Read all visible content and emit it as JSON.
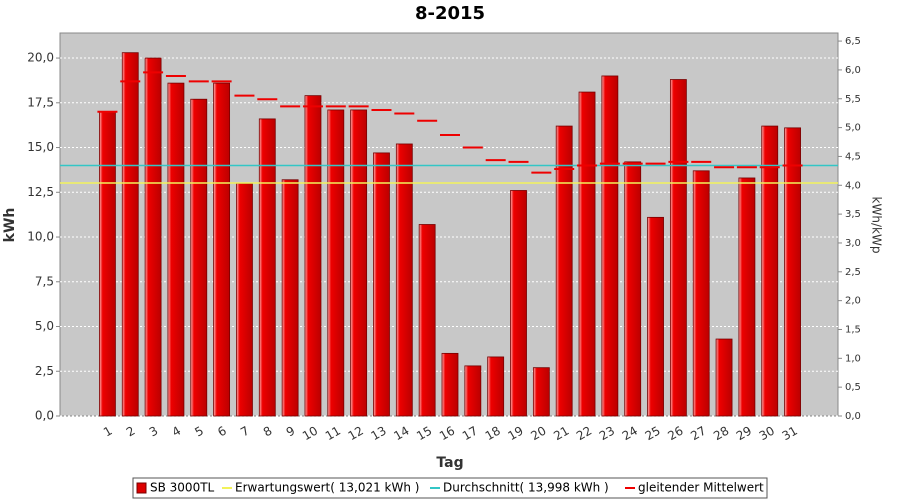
{
  "chart_data": {
    "type": "bar",
    "title": "8-2015",
    "x_label": "Tag",
    "y_label": "kWh",
    "y2_label": "kWh/kWp",
    "categories": [
      "1",
      "2",
      "3",
      "4",
      "5",
      "6",
      "7",
      "8",
      "9",
      "10",
      "11",
      "12",
      "13",
      "14",
      "15",
      "16",
      "17",
      "18",
      "19",
      "20",
      "21",
      "22",
      "23",
      "24",
      "25",
      "26",
      "27",
      "28",
      "29",
      "30",
      "31"
    ],
    "series": [
      {
        "name": "SB 3000TL",
        "kind": "bar",
        "color": "#dd0000",
        "values": [
          17.0,
          20.3,
          20.0,
          18.6,
          17.7,
          18.6,
          13.0,
          16.6,
          13.2,
          17.9,
          17.1,
          17.1,
          14.7,
          15.2,
          10.7,
          3.5,
          2.8,
          3.3,
          12.6,
          2.7,
          16.2,
          18.1,
          19.0,
          14.2,
          11.1,
          18.8,
          13.7,
          4.3,
          13.3,
          16.2,
          16.1
        ]
      },
      {
        "name": "Erwartungswert( 13,021 kWh )",
        "kind": "hline",
        "color": "#f2f25a",
        "value": 13.021
      },
      {
        "name": "Durchschnitt( 13,998 kWh )",
        "kind": "hline",
        "color": "#33c6c6",
        "value": 13.998
      },
      {
        "name": "gleitender Mittelwert",
        "kind": "dash",
        "color": "#ee0000",
        "values": [
          17.0,
          18.7,
          19.2,
          19.0,
          18.7,
          18.7,
          17.9,
          17.7,
          17.3,
          17.3,
          17.3,
          17.3,
          17.1,
          16.9,
          16.5,
          15.7,
          15.0,
          14.3,
          14.2,
          13.6,
          13.8,
          14.0,
          14.1,
          14.1,
          14.1,
          14.2,
          14.2,
          13.9,
          13.9,
          13.9,
          14.0
        ]
      }
    ],
    "ylim": [
      0,
      21.4
    ],
    "yticks": [
      {
        "value": 0,
        "label": "0,0"
      },
      {
        "value": 2.5,
        "label": "2,5"
      },
      {
        "value": 5,
        "label": "5,0"
      },
      {
        "value": 7.5,
        "label": "7,5"
      },
      {
        "value": 10,
        "label": "10,0"
      },
      {
        "value": 12.5,
        "label": "12,5"
      },
      {
        "value": 15,
        "label": "15,0"
      },
      {
        "value": 17.5,
        "label": "17,5"
      },
      {
        "value": 20,
        "label": "20,0"
      }
    ],
    "y2lim": [
      0,
      6.64
    ],
    "y2ticks": [
      {
        "value": 0,
        "label": "0,0"
      },
      {
        "value": 0.5,
        "label": "0,5"
      },
      {
        "value": 1,
        "label": "1,0"
      },
      {
        "value": 1.5,
        "label": "1,5"
      },
      {
        "value": 2,
        "label": "2,0"
      },
      {
        "value": 2.5,
        "label": "2,5"
      },
      {
        "value": 3,
        "label": "3,0"
      },
      {
        "value": 3.5,
        "label": "3,5"
      },
      {
        "value": 4,
        "label": "4,0"
      },
      {
        "value": 4.5,
        "label": "4,5"
      },
      {
        "value": 5,
        "label": "5,0"
      },
      {
        "value": 5.5,
        "label": "5,5"
      },
      {
        "value": 6,
        "label": "6,0"
      },
      {
        "value": 6.5,
        "label": "6,5"
      }
    ],
    "grid": true
  }
}
